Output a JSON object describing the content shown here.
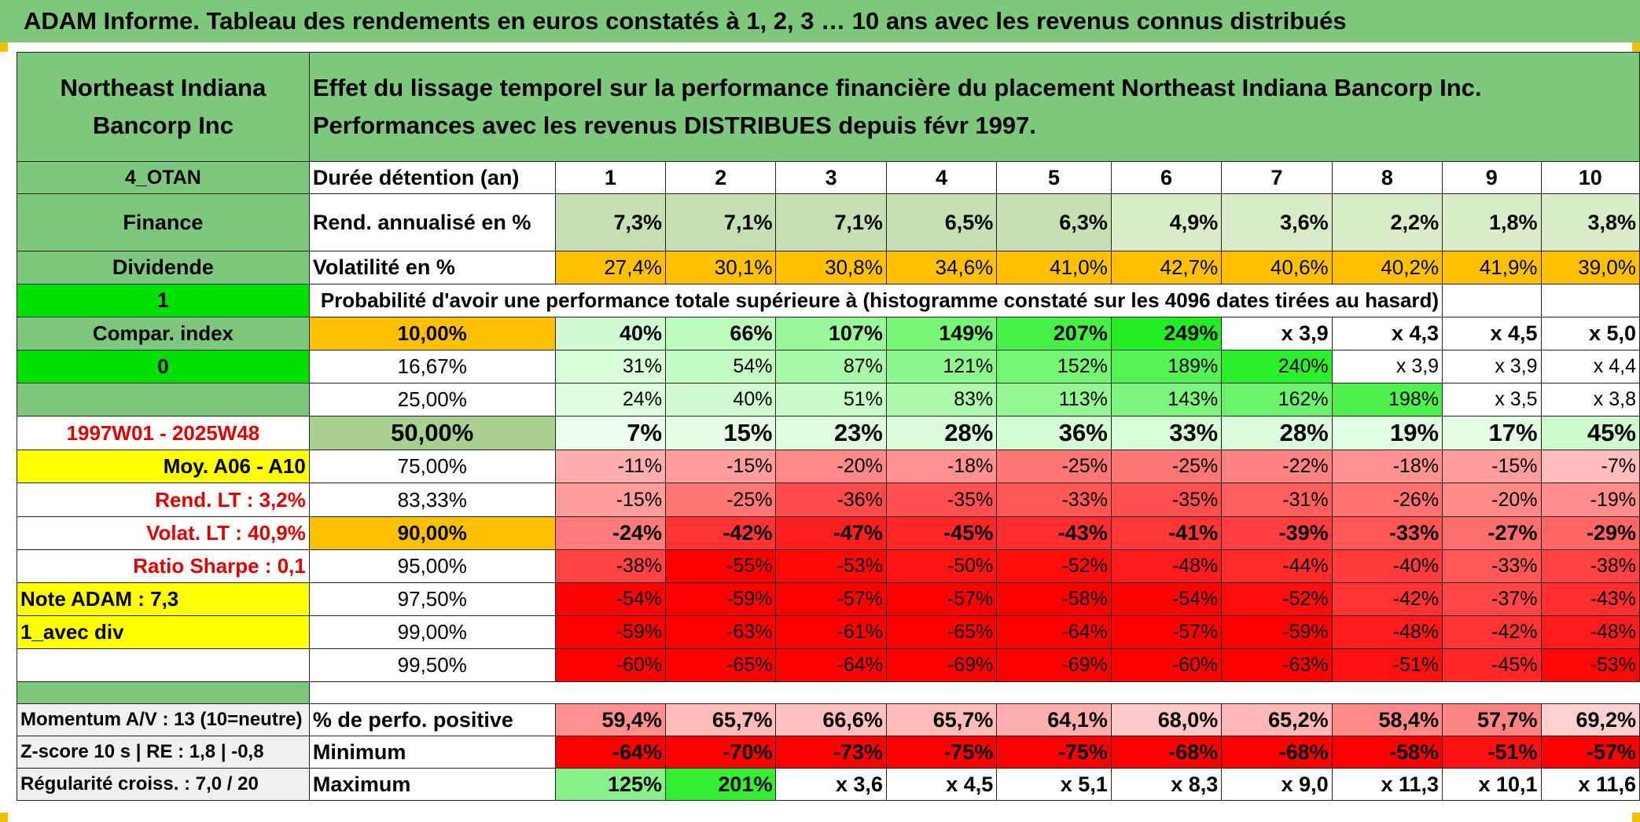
{
  "title": "ADAM Informe. Tableau des rendements en euros constatés à 1, 2, 3 … 10 ans avec les revenus connus distribués",
  "company": "Northeast Indiana Bancorp Inc",
  "description": "Effet du lissage temporel sur la performance financière du placement Northeast Indiana Bancorp Inc. Performances avec les revenus DISTRIBUES depuis févr 1997.",
  "side": {
    "code": "4_OTAN",
    "sector": "Finance",
    "type": "Dividende",
    "val1": "1",
    "compar": "Compar. index",
    "val0": "0",
    "period": "1997W01 - 2025W48",
    "moy": "Moy. A06 - A10",
    "rend_lt": "Rend. LT :   3,2%",
    "volat_lt": "Volat. LT :   40,9%",
    "sharpe": "Ratio Sharpe :    0,1",
    "note": "Note ADAM : 7,3",
    "avec_div": "1_avec div",
    "momentum": "Momentum A/V : 13 (10=neutre)",
    "zscore": "Z-score 10 s | RE : 1,8 | -0,8",
    "regularite": "Régularité croiss. : 7,0 / 20"
  },
  "labels": {
    "duree": "Durée détention (an)",
    "rend": "Rend. annualisé en %",
    "vol": "Volatilité en %",
    "proba": "Probabilité d'avoir une performance totale supérieure à (histogramme constaté sur les 4096 dates tirées au hasard)",
    "pct_pos": "% de perfo. positive",
    "min": "Minimum",
    "max": "Maximum"
  },
  "years": [
    "1",
    "2",
    "3",
    "4",
    "5",
    "6",
    "7",
    "8",
    "9",
    "10"
  ],
  "rend": [
    "7,3%",
    "7,1%",
    "7,1%",
    "6,5%",
    "6,3%",
    "4,9%",
    "3,6%",
    "2,2%",
    "1,8%",
    "3,8%"
  ],
  "vol": [
    "27,4%",
    "30,1%",
    "30,8%",
    "34,6%",
    "41,0%",
    "42,7%",
    "40,6%",
    "40,2%",
    "41,9%",
    "39,0%"
  ],
  "prob_rows": [
    {
      "p": "10,00%",
      "v": [
        "40%",
        "66%",
        "107%",
        "149%",
        "207%",
        "249%",
        "x 3,9",
        "x 4,3",
        "x 4,5",
        "x 5,0"
      ],
      "bold": true
    },
    {
      "p": "16,67%",
      "v": [
        "31%",
        "54%",
        "87%",
        "121%",
        "152%",
        "189%",
        "240%",
        "x 3,9",
        "x 3,9",
        "x 4,4"
      ],
      "bold": false
    },
    {
      "p": "25,00%",
      "v": [
        "24%",
        "40%",
        "51%",
        "83%",
        "113%",
        "143%",
        "162%",
        "198%",
        "x 3,5",
        "x 3,8"
      ],
      "bold": false
    },
    {
      "p": "50,00%",
      "v": [
        "7%",
        "15%",
        "23%",
        "28%",
        "36%",
        "33%",
        "28%",
        "19%",
        "17%",
        "45%"
      ],
      "bold": true
    },
    {
      "p": "75,00%",
      "v": [
        "-11%",
        "-15%",
        "-20%",
        "-18%",
        "-25%",
        "-25%",
        "-22%",
        "-18%",
        "-15%",
        "-7%"
      ],
      "bold": false
    },
    {
      "p": "83,33%",
      "v": [
        "-15%",
        "-25%",
        "-36%",
        "-35%",
        "-33%",
        "-35%",
        "-31%",
        "-26%",
        "-20%",
        "-19%"
      ],
      "bold": false
    },
    {
      "p": "90,00%",
      "v": [
        "-24%",
        "-42%",
        "-47%",
        "-45%",
        "-43%",
        "-41%",
        "-39%",
        "-33%",
        "-27%",
        "-29%"
      ],
      "bold": true
    },
    {
      "p": "95,00%",
      "v": [
        "-38%",
        "-55%",
        "-53%",
        "-50%",
        "-52%",
        "-48%",
        "-44%",
        "-40%",
        "-33%",
        "-38%"
      ],
      "bold": false
    },
    {
      "p": "97,50%",
      "v": [
        "-54%",
        "-59%",
        "-57%",
        "-57%",
        "-58%",
        "-54%",
        "-52%",
        "-42%",
        "-37%",
        "-43%"
      ],
      "bold": false
    },
    {
      "p": "99,00%",
      "v": [
        "-59%",
        "-63%",
        "-61%",
        "-65%",
        "-64%",
        "-57%",
        "-59%",
        "-48%",
        "-42%",
        "-48%"
      ],
      "bold": false
    },
    {
      "p": "99,50%",
      "v": [
        "-60%",
        "-65%",
        "-64%",
        "-69%",
        "-69%",
        "-60%",
        "-63%",
        "-51%",
        "-45%",
        "-53%"
      ],
      "bold": false
    }
  ],
  "pct_pos": [
    "59,4%",
    "65,7%",
    "66,6%",
    "65,7%",
    "64,1%",
    "68,0%",
    "65,2%",
    "58,4%",
    "57,7%",
    "69,2%"
  ],
  "minimum": [
    "-64%",
    "-70%",
    "-73%",
    "-75%",
    "-75%",
    "-68%",
    "-68%",
    "-58%",
    "-51%",
    "-57%"
  ],
  "maximum": [
    "125%",
    "201%",
    "x 3,6",
    "x 4,5",
    "x 5,1",
    "x 8,3",
    "x 9,0",
    "x 11,3",
    "x 10,1",
    "x 11,6"
  ],
  "colors": {
    "header_green": "#7ec87e",
    "light_green": "#c6e0b4",
    "bright_green": "#00e000",
    "yellow": "#ffff00",
    "orange": "#ffc000",
    "red": "#ff0000",
    "label_red": "#e00000"
  }
}
